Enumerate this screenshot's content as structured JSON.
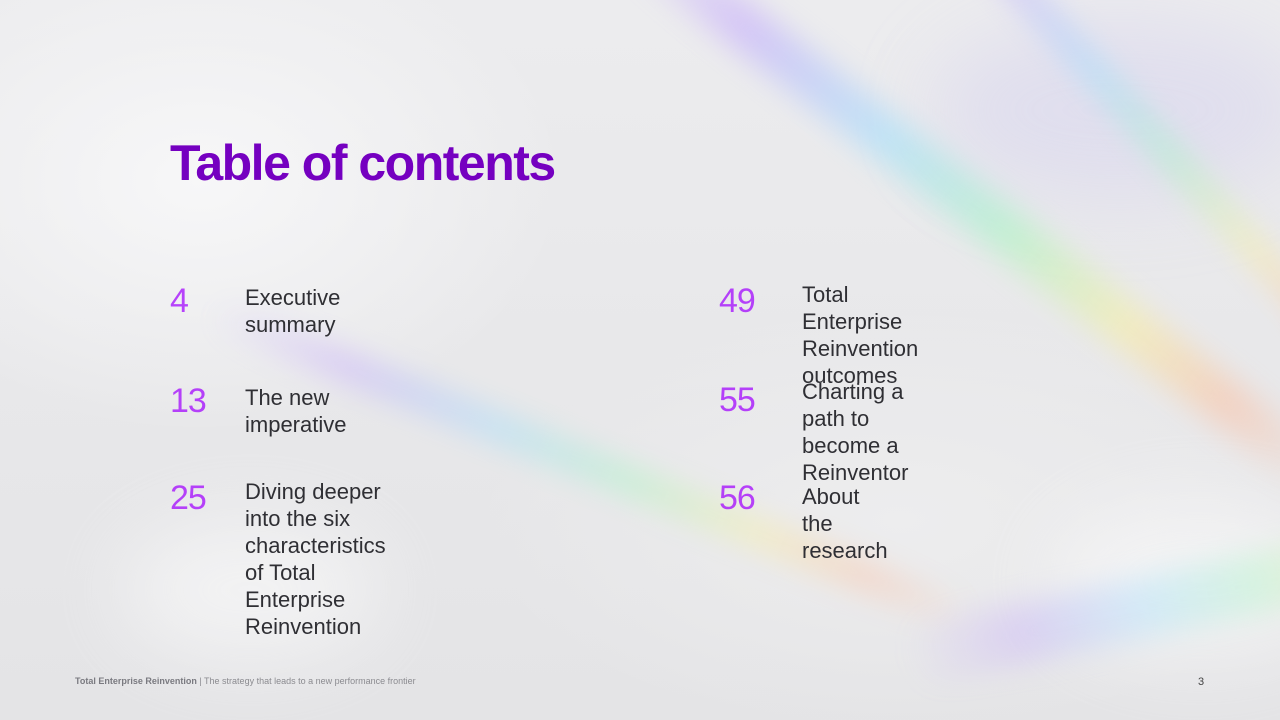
{
  "page": {
    "title": "Table of contents",
    "page_number": "3"
  },
  "toc": [
    {
      "number": "4",
      "label": "Executive summary"
    },
    {
      "number": "13",
      "label": "The new imperative"
    },
    {
      "number": "25",
      "label": "Diving deeper into the six characteristics\nof Total Enterprise Reinvention"
    },
    {
      "number": "49",
      "label": "Total Enterprise\nReinvention outcomes"
    },
    {
      "number": "55",
      "label": "Charting a path to\nbecome a Reinventor"
    },
    {
      "number": "56",
      "label": "About the research"
    }
  ],
  "footer": {
    "report_name": "Total Enterprise Reinvention",
    "separator": " | ",
    "tagline": "The strategy that leads to a new performance frontier"
  },
  "colors": {
    "title": "#7500c0",
    "number": "#a100ff",
    "text": "#2f2f34"
  }
}
